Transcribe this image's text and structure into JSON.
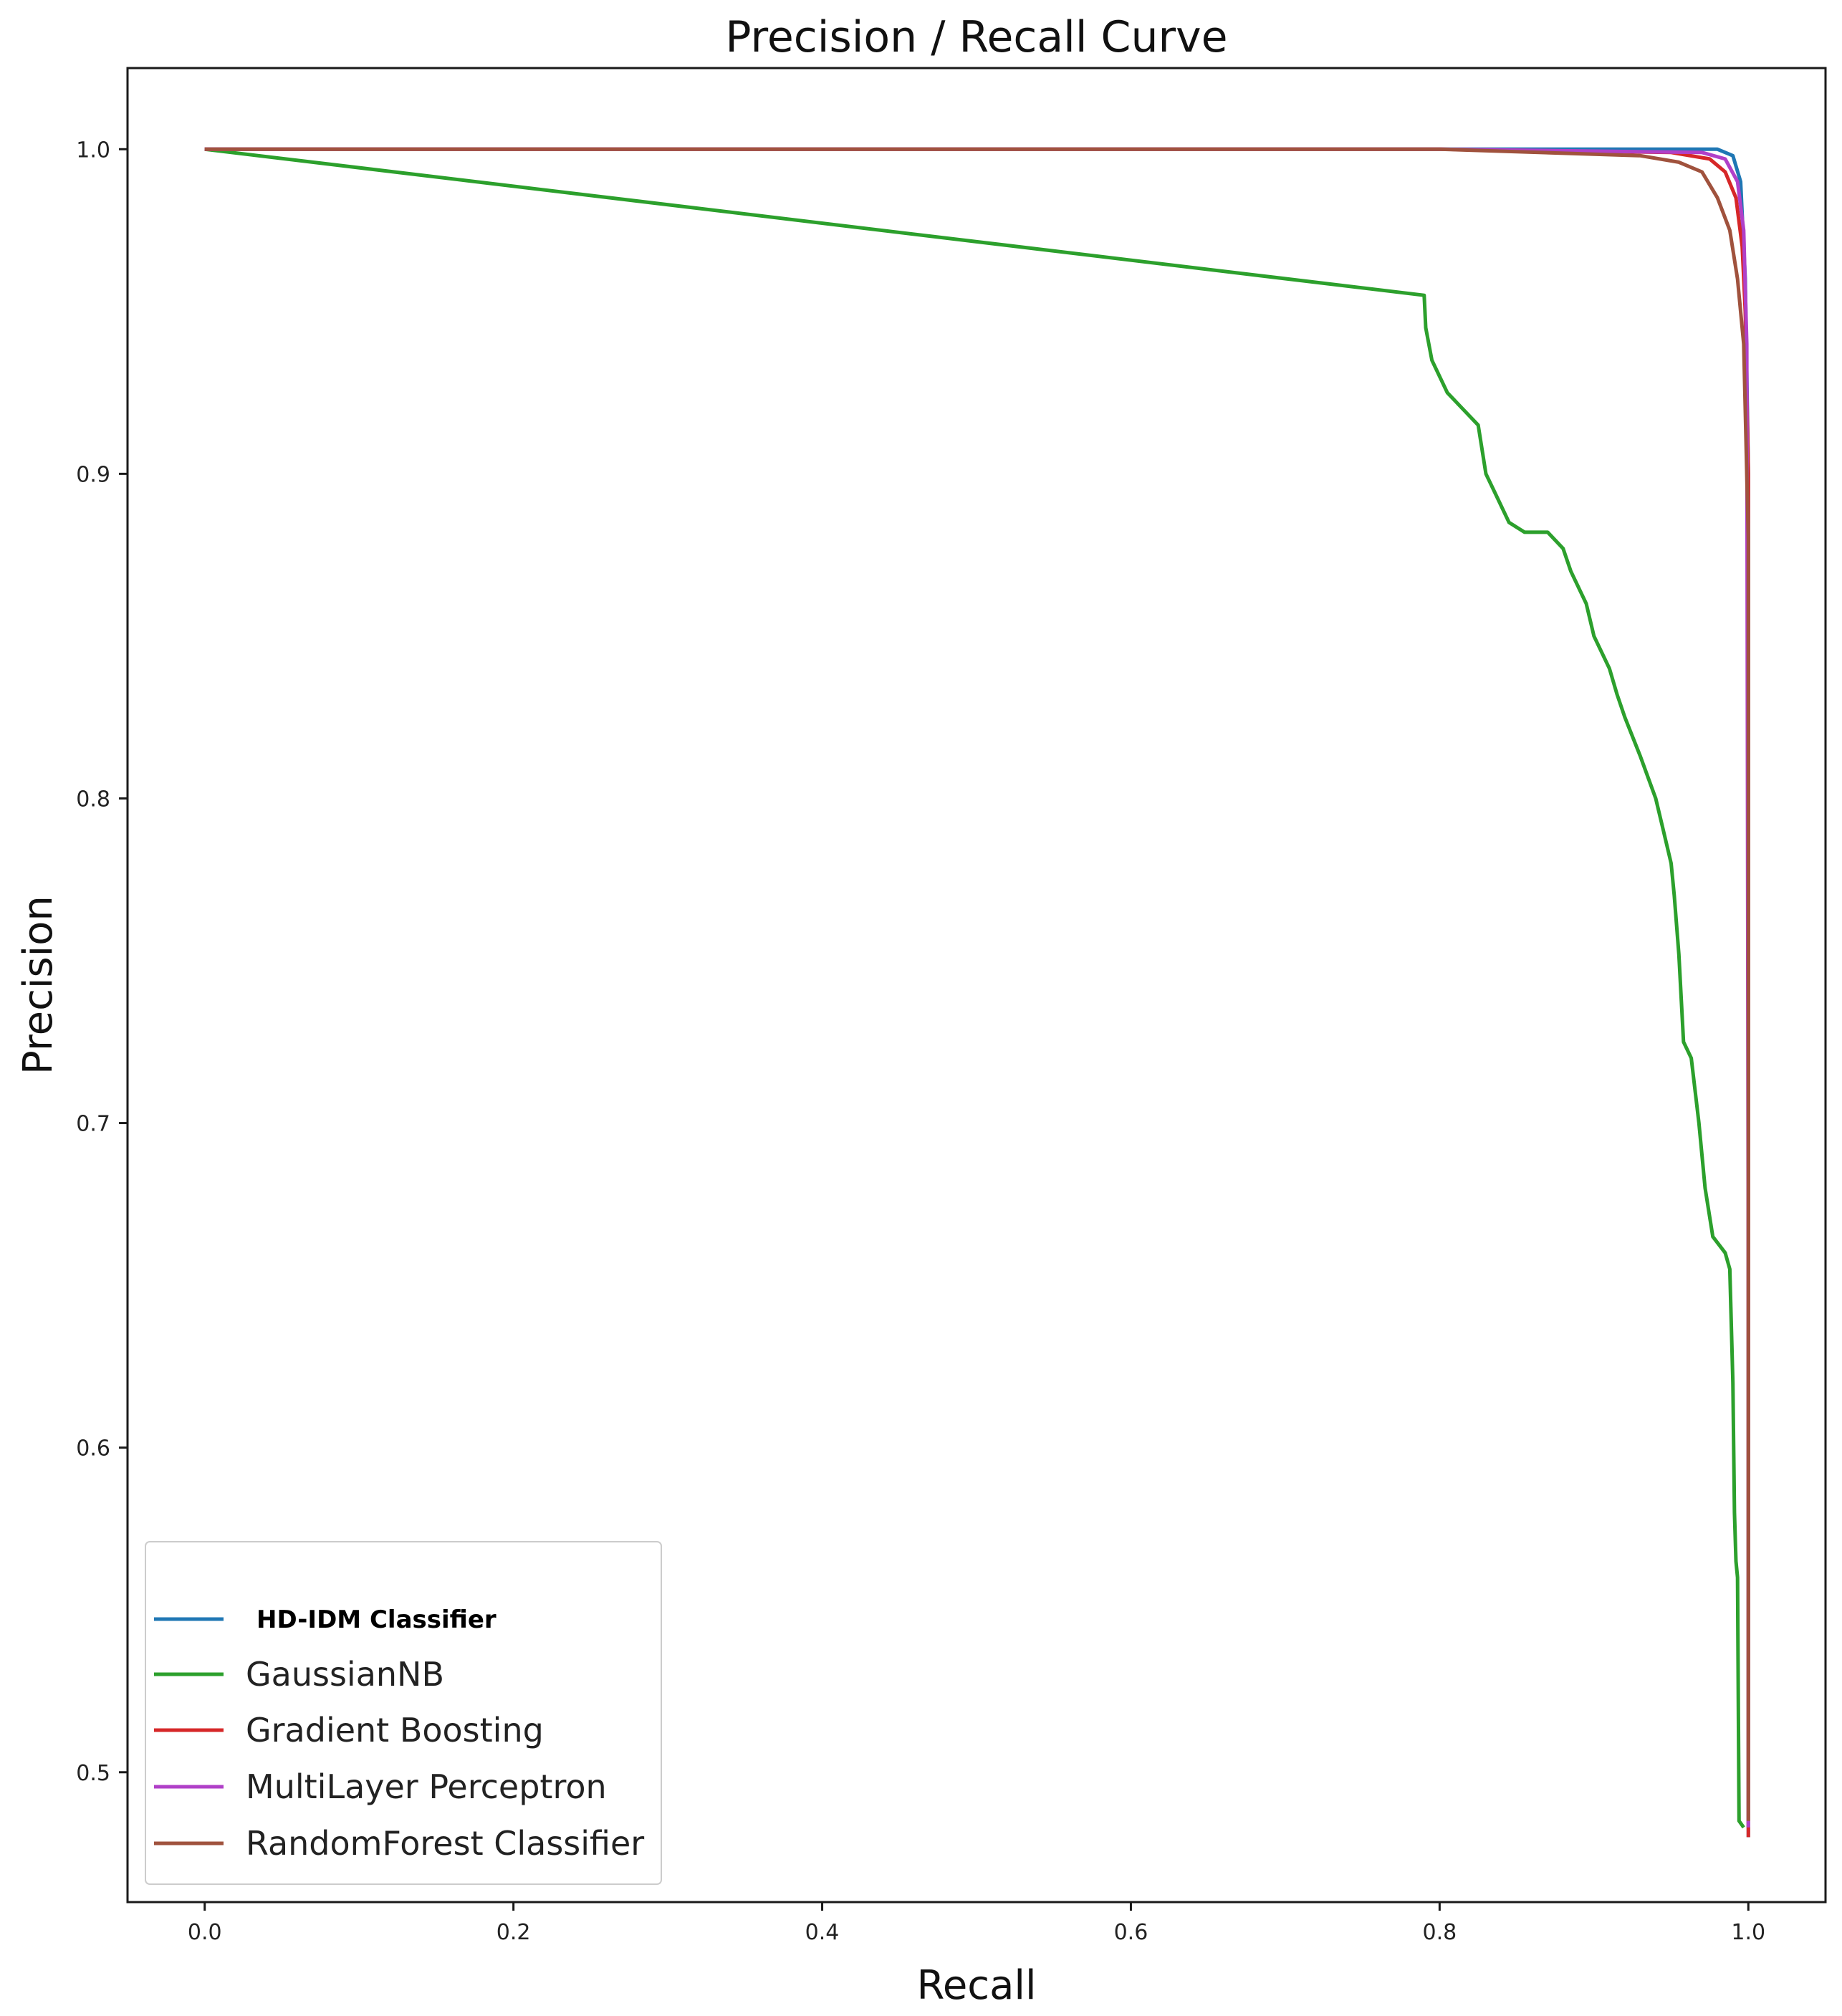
{
  "chart_data": {
    "type": "line",
    "title": "Precision / Recall Curve",
    "xlabel": "Recall",
    "ylabel": "Precision",
    "xlim": [
      -0.05,
      1.05
    ],
    "ylim": [
      0.46,
      1.025
    ],
    "xticks": [
      0.0,
      0.2,
      0.4,
      0.6,
      0.8,
      1.0
    ],
    "xtick_labels": [
      "0.0",
      "0.2",
      "0.4",
      "0.6",
      "0.8",
      "1.0"
    ],
    "yticks": [
      0.5,
      0.6,
      0.7,
      0.8,
      0.9,
      1.0
    ],
    "ytick_labels": [
      "0.5",
      "0.6",
      "0.7",
      "0.8",
      "0.9",
      "1.0"
    ],
    "grid": false,
    "legend_position": "lower-left",
    "series": [
      {
        "name": "HD-IDM Classifier",
        "color": "#1f77b4",
        "bold_label": true,
        "points": [
          [
            0.0,
            1.0
          ],
          [
            0.8,
            1.0
          ],
          [
            0.98,
            1.0
          ],
          [
            0.99,
            0.998
          ],
          [
            0.995,
            0.99
          ],
          [
            0.998,
            0.96
          ],
          [
            1.0,
            0.9
          ],
          [
            1.0,
            0.48
          ]
        ]
      },
      {
        "name": "GaussianNB",
        "color": "#2ca02c",
        "bold_label": false,
        "points": [
          [
            0.0,
            1.0
          ],
          [
            0.79,
            0.955
          ],
          [
            0.791,
            0.945
          ],
          [
            0.795,
            0.935
          ],
          [
            0.805,
            0.925
          ],
          [
            0.815,
            0.92
          ],
          [
            0.825,
            0.915
          ],
          [
            0.83,
            0.9
          ],
          [
            0.835,
            0.895
          ],
          [
            0.845,
            0.885
          ],
          [
            0.855,
            0.882
          ],
          [
            0.87,
            0.882
          ],
          [
            0.88,
            0.877
          ],
          [
            0.885,
            0.87
          ],
          [
            0.895,
            0.86
          ],
          [
            0.9,
            0.85
          ],
          [
            0.91,
            0.84
          ],
          [
            0.915,
            0.832
          ],
          [
            0.92,
            0.825
          ],
          [
            0.93,
            0.813
          ],
          [
            0.94,
            0.8
          ],
          [
            0.945,
            0.79
          ],
          [
            0.95,
            0.78
          ],
          [
            0.952,
            0.77
          ],
          [
            0.955,
            0.752
          ],
          [
            0.958,
            0.725
          ],
          [
            0.963,
            0.72
          ],
          [
            0.968,
            0.7
          ],
          [
            0.972,
            0.68
          ],
          [
            0.977,
            0.665
          ],
          [
            0.985,
            0.66
          ],
          [
            0.988,
            0.655
          ],
          [
            0.99,
            0.62
          ],
          [
            0.991,
            0.58
          ],
          [
            0.992,
            0.565
          ],
          [
            0.993,
            0.56
          ],
          [
            0.994,
            0.485
          ],
          [
            0.997,
            0.483
          ]
        ]
      },
      {
        "name": "Gradient Boosting",
        "color": "#d62728",
        "bold_label": false,
        "points": [
          [
            0.0,
            1.0
          ],
          [
            0.8,
            1.0
          ],
          [
            0.95,
            0.999
          ],
          [
            0.975,
            0.997
          ],
          [
            0.985,
            0.993
          ],
          [
            0.992,
            0.985
          ],
          [
            0.996,
            0.97
          ],
          [
            0.998,
            0.95
          ],
          [
            1.0,
            0.9
          ],
          [
            1.0,
            0.48
          ]
        ]
      },
      {
        "name": "MultiLayer Perceptron",
        "color": "#b040c8",
        "bold_label": false,
        "points": [
          [
            0.0,
            1.0
          ],
          [
            0.8,
            1.0
          ],
          [
            0.97,
            0.999
          ],
          [
            0.985,
            0.997
          ],
          [
            0.993,
            0.99
          ],
          [
            0.997,
            0.975
          ],
          [
            0.999,
            0.94
          ],
          [
            1.0,
            0.64
          ],
          [
            1.0,
            0.483
          ]
        ]
      },
      {
        "name": "RandomForest Classifier",
        "color": "#a0523d",
        "bold_label": false,
        "points": [
          [
            0.0,
            1.0
          ],
          [
            0.8,
            1.0
          ],
          [
            0.93,
            0.998
          ],
          [
            0.955,
            0.996
          ],
          [
            0.97,
            0.993
          ],
          [
            0.98,
            0.985
          ],
          [
            0.988,
            0.975
          ],
          [
            0.993,
            0.96
          ],
          [
            0.997,
            0.94
          ],
          [
            0.999,
            0.9
          ],
          [
            1.0,
            0.88
          ],
          [
            1.0,
            0.485
          ]
        ]
      }
    ]
  }
}
